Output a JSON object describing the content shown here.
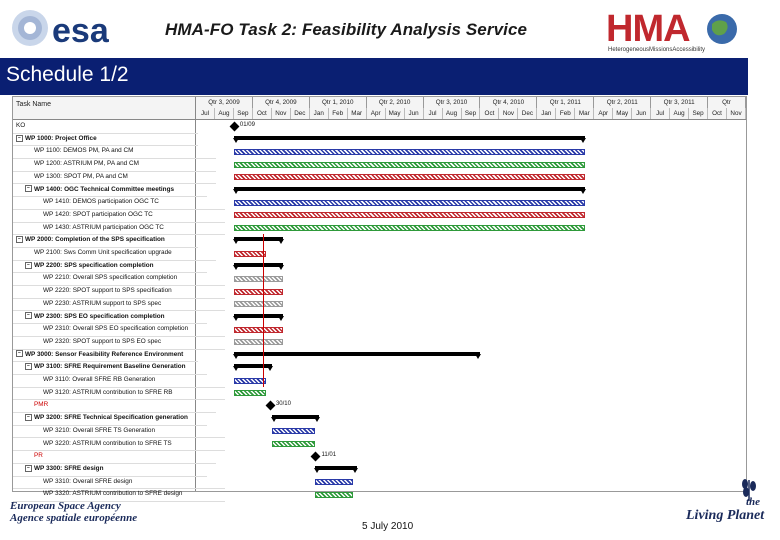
{
  "header": {
    "esa_logo_text": "esa",
    "title": "HMA-FO Task 2: Feasibility Analysis Service",
    "hma_logo_text": "HMA",
    "hma_tagline": "HeterogeneousMissionsAccessibility"
  },
  "slide": {
    "title": "Schedule 1/2"
  },
  "gantt": {
    "task_header": "Task Name",
    "quarters": [
      "Qtr 3, 2009",
      "Qtr 4, 2009",
      "Qtr 1, 2010",
      "Qtr 2, 2010",
      "Qtr 3, 2010",
      "Qtr 4, 2010",
      "Qtr 1, 2011",
      "Qtr 2, 2011",
      "Qtr 3, 2011",
      "Qtr"
    ],
    "months": [
      "Jul",
      "Aug",
      "Sep",
      "Oct",
      "Nov",
      "Dec",
      "Jan",
      "Feb",
      "Mar",
      "Apr",
      "May",
      "Jun",
      "Jul",
      "Aug",
      "Sep",
      "Oct",
      "Nov",
      "Dec",
      "Jan",
      "Feb",
      "Mar",
      "Apr",
      "May",
      "Jun",
      "Jul",
      "Aug",
      "Sep",
      "Oct",
      "Nov"
    ],
    "tasks": [
      {
        "name": "KO",
        "level": 0,
        "bold": false,
        "collapse": ""
      },
      {
        "name": "WP 1000: Project Office",
        "level": 0,
        "bold": true,
        "collapse": "−"
      },
      {
        "name": "WP 1100: DEMOS PM, PA and CM",
        "level": 2,
        "bold": false,
        "collapse": ""
      },
      {
        "name": "WP 1200: ASTRIUM PM, PA and CM",
        "level": 2,
        "bold": false,
        "collapse": ""
      },
      {
        "name": "WP 1300: SPOT PM, PA and CM",
        "level": 2,
        "bold": false,
        "collapse": ""
      },
      {
        "name": "WP 1400: OGC Technical Committee meetings",
        "level": 1,
        "bold": true,
        "collapse": "−"
      },
      {
        "name": "WP 1410: DEMOS participation OGC TC",
        "level": 3,
        "bold": false,
        "collapse": ""
      },
      {
        "name": "WP 1420: SPOT participation OGC TC",
        "level": 3,
        "bold": false,
        "collapse": ""
      },
      {
        "name": "WP 1430: ASTRIUM participation OGC TC",
        "level": 3,
        "bold": false,
        "collapse": ""
      },
      {
        "name": "WP 2000: Completion of the SPS specification",
        "level": 0,
        "bold": true,
        "collapse": "−"
      },
      {
        "name": "WP 2100: Sws Comm Unit specification upgrade",
        "level": 2,
        "bold": false,
        "collapse": ""
      },
      {
        "name": "WP 2200: SPS specification completion",
        "level": 1,
        "bold": true,
        "collapse": "−"
      },
      {
        "name": "WP 2210: Overall SPS specification completion",
        "level": 3,
        "bold": false,
        "collapse": ""
      },
      {
        "name": "WP 2220: SPOT support to SPS specification",
        "level": 3,
        "bold": false,
        "collapse": ""
      },
      {
        "name": "WP 2230: ASTRIUM support to SPS spec",
        "level": 3,
        "bold": false,
        "collapse": ""
      },
      {
        "name": "WP 2300: SPS EO specification completion",
        "level": 1,
        "bold": true,
        "collapse": "−"
      },
      {
        "name": "WP 2310: Overall SPS EO specification completion",
        "level": 3,
        "bold": false,
        "collapse": ""
      },
      {
        "name": "WP 2320: SPOT support to SPS EO spec",
        "level": 3,
        "bold": false,
        "collapse": ""
      },
      {
        "name": "WP 3000: Sensor Feasibility Reference Environment",
        "level": 0,
        "bold": true,
        "collapse": "−"
      },
      {
        "name": "WP 3100: SFRE Requirement Baseline Generation",
        "level": 1,
        "bold": true,
        "collapse": "−"
      },
      {
        "name": "WP 3110: Overall SFRE RB Generation",
        "level": 3,
        "bold": false,
        "collapse": ""
      },
      {
        "name": "WP 3120: ASTRIUM contribution to SFRE RB",
        "level": 3,
        "bold": false,
        "collapse": ""
      },
      {
        "name": "PMR",
        "level": 2,
        "bold": false,
        "collapse": "",
        "color": "#cc0000"
      },
      {
        "name": "WP 3200: SFRE Technical Specification generation",
        "level": 1,
        "bold": true,
        "collapse": "−"
      },
      {
        "name": "WP 3210: Overall SFRE TS Generation",
        "level": 3,
        "bold": false,
        "collapse": ""
      },
      {
        "name": "WP 3220: ASTRIUM contribution to SFRE TS",
        "level": 3,
        "bold": false,
        "collapse": ""
      },
      {
        "name": "PR",
        "level": 2,
        "bold": false,
        "collapse": "",
        "color": "#cc0000"
      },
      {
        "name": "WP 3300: SFRE design",
        "level": 1,
        "bold": true,
        "collapse": "−"
      },
      {
        "name": "WP 3310: Overall SFRE design",
        "level": 3,
        "bold": false,
        "collapse": ""
      },
      {
        "name": "WP 3320: ASTRIUM contribution to SFRE design",
        "level": 3,
        "bold": false,
        "collapse": ""
      }
    ],
    "milestones": {
      "ko": "01/09",
      "pmr": "30/10",
      "pr": "11/01"
    },
    "colors": {
      "blue": "#2a3aa8",
      "red": "#c0282e",
      "green": "#2e9a3a",
      "gray": "#9a9a9a",
      "black": "#000000"
    }
  },
  "footer": {
    "agency_en": "European Space Agency",
    "agency_fr": "Agence spatiale européenne",
    "date": "5 July 2010",
    "living_the": "the",
    "living_planet": "Living Planet"
  }
}
